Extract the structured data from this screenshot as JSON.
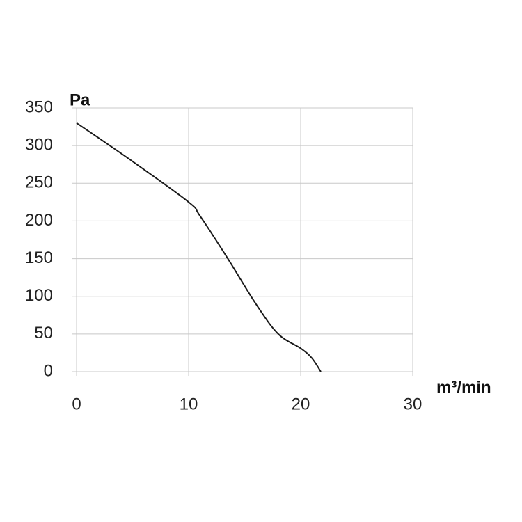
{
  "chart_data": {
    "type": "line",
    "ylabel": "Pa",
    "xlabel": "m³/min",
    "x": [
      0,
      5,
      10,
      11,
      13.5,
      16,
      18,
      20,
      21,
      21.8
    ],
    "series": [
      {
        "color": "#1a1a1a",
        "values": [
          330,
          279,
          225,
          207,
          150,
          90,
          50,
          31,
          18,
          0
        ]
      }
    ],
    "xlim": [
      0,
      30
    ],
    "xticks": [
      0,
      10,
      20,
      30
    ],
    "ylim": [
      0,
      350
    ],
    "yticks": [
      0,
      50,
      100,
      150,
      200,
      250,
      300,
      350
    ],
    "grid": true
  }
}
